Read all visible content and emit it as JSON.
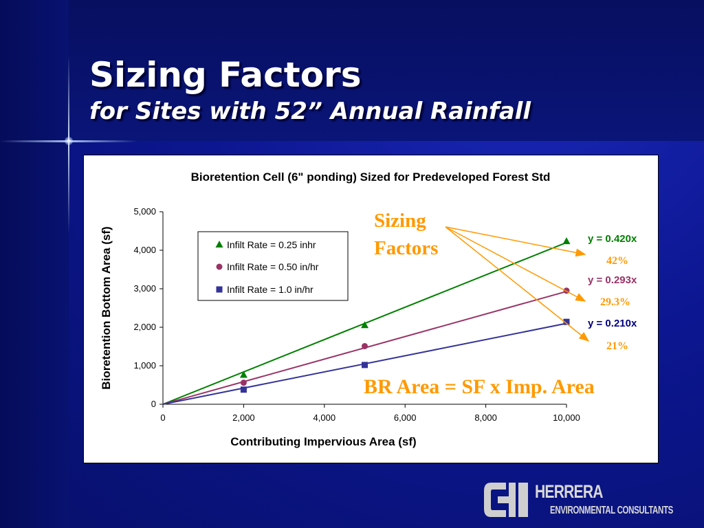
{
  "slide": {
    "title": "Sizing Factors",
    "subtitle": "for Sites with 52” Annual Rainfall"
  },
  "chart_data": {
    "type": "scatter",
    "title": "Bioretention Cell (6\" ponding) Sized for Predeveloped Forest Std",
    "xlabel": "Contributing  Impervious Area (sf)",
    "ylabel": "Bioretention Bottom Area (sf)",
    "xlim": [
      0,
      10000
    ],
    "ylim": [
      0,
      5000
    ],
    "x_ticks": [
      "0",
      "2,000",
      "4,000",
      "6,000",
      "8,000",
      "10,000"
    ],
    "y_ticks": [
      "0",
      "1,000",
      "2,000",
      "3,000",
      "4,000",
      "5,000"
    ],
    "x_tick_values": [
      0,
      2000,
      4000,
      6000,
      8000,
      10000
    ],
    "y_tick_values": [
      0,
      1000,
      2000,
      3000,
      4000,
      5000
    ],
    "grid": false,
    "legend_position": "top-left",
    "series": [
      {
        "name": "Infilt Rate = 0.25 inhr",
        "marker": "triangle",
        "color": "#008000",
        "points": [
          [
            2000,
            760
          ],
          [
            5000,
            2050
          ],
          [
            10000,
            4230
          ]
        ],
        "trendline_slope": 0.42,
        "equation": "y = 0.420x",
        "factor": "42%"
      },
      {
        "name": "Infilt Rate = 0.50 in/hr",
        "marker": "circle",
        "color": "#993366",
        "points": [
          [
            2000,
            560
          ],
          [
            5000,
            1510
          ],
          [
            10000,
            2950
          ]
        ],
        "trendline_slope": 0.293,
        "equation": "y = 0.293x",
        "factor": "29.3%"
      },
      {
        "name": "Infilt Rate = 1.0 in/hr",
        "marker": "square",
        "color": "#333399",
        "points": [
          [
            2000,
            380
          ],
          [
            5000,
            1020
          ],
          [
            10000,
            2140
          ]
        ],
        "trendline_slope": 0.21,
        "equation": "y = 0.210x",
        "factor": "21%"
      }
    ],
    "annotations": {
      "sizing_factors": [
        "Sizing",
        "Factors"
      ],
      "formula": "BR Area = SF x Imp. Area",
      "annotation_color": "#ff9900"
    }
  },
  "logo": {
    "name": "HERRERA",
    "tagline": "ENVIRONMENTAL CONSULTANTS"
  }
}
